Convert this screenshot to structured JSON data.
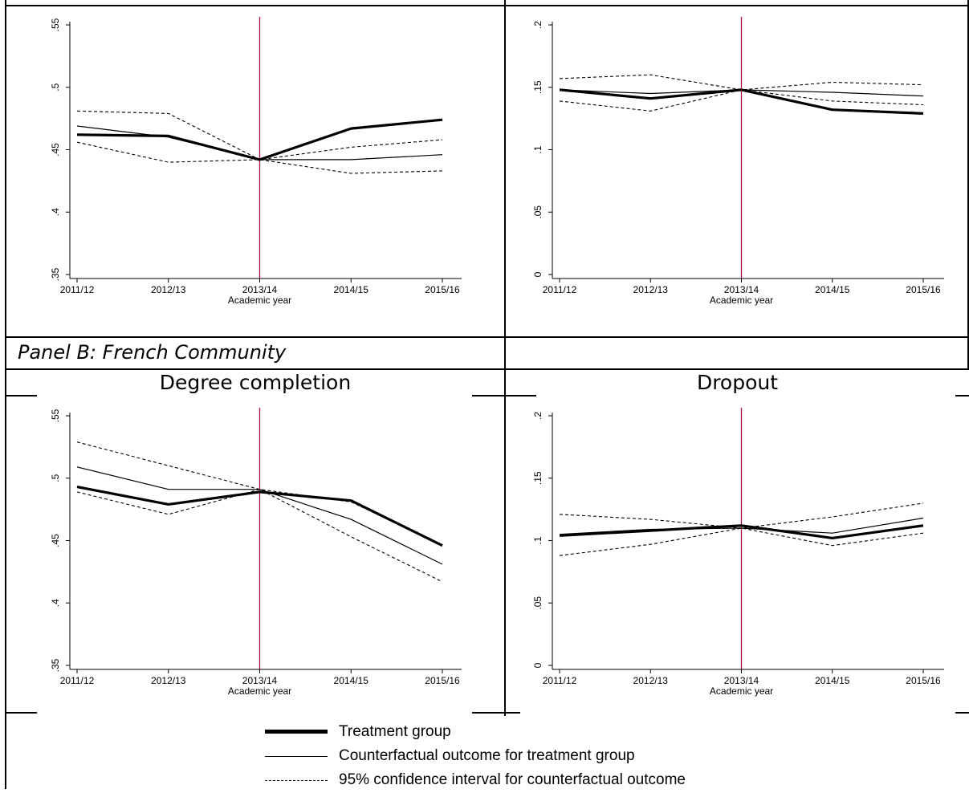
{
  "panel_b_label": "Panel B: French Community",
  "column_titles": {
    "left": "Degree completion",
    "right": "Dropout"
  },
  "legend": {
    "treatment": "Treatment group",
    "counterfactual": "Counterfactual outcome for treatment group",
    "ci": "95% confidence interval for counterfactual outcome"
  },
  "colors": {
    "line": "#000000",
    "vline": "#b0103a",
    "border": "#000000"
  },
  "chart_data": [
    {
      "id": "top-left",
      "type": "line",
      "x": [
        "2011/12",
        "2012/13",
        "2013/14",
        "2014/15",
        "2015/16"
      ],
      "xlabel": "Academic year",
      "ylim": [
        0.35,
        0.55
      ],
      "yticks": [
        0.35,
        0.4,
        0.45,
        0.5,
        0.55
      ],
      "ytick_labels": [
        ".35",
        ".4",
        ".45",
        ".5",
        ".55"
      ],
      "vline_at": "2013/14",
      "series": [
        {
          "role": "treatment",
          "values": [
            0.462,
            0.461,
            0.442,
            0.467,
            0.474
          ]
        },
        {
          "role": "counterfactual",
          "values": [
            0.469,
            0.46,
            0.442,
            0.442,
            0.446
          ]
        },
        {
          "role": "ci_upper",
          "values": [
            0.481,
            0.479,
            0.442,
            0.452,
            0.458
          ]
        },
        {
          "role": "ci_lower",
          "values": [
            0.456,
            0.44,
            0.442,
            0.431,
            0.433
          ]
        }
      ]
    },
    {
      "id": "top-right",
      "type": "line",
      "x": [
        "2011/12",
        "2012/13",
        "2013/14",
        "2014/15",
        "2015/16"
      ],
      "xlabel": "Academic year",
      "ylim": [
        0,
        0.2
      ],
      "yticks": [
        0,
        0.05,
        0.1,
        0.15,
        0.2
      ],
      "ytick_labels": [
        "0",
        ".05",
        ".1",
        ".15",
        ".2"
      ],
      "vline_at": "2013/14",
      "series": [
        {
          "role": "treatment",
          "values": [
            0.148,
            0.141,
            0.148,
            0.132,
            0.129
          ]
        },
        {
          "role": "counterfactual",
          "values": [
            0.148,
            0.145,
            0.148,
            0.146,
            0.143
          ]
        },
        {
          "role": "ci_upper",
          "values": [
            0.157,
            0.16,
            0.148,
            0.154,
            0.152
          ]
        },
        {
          "role": "ci_lower",
          "values": [
            0.139,
            0.131,
            0.148,
            0.139,
            0.136
          ]
        }
      ]
    },
    {
      "id": "bottom-left",
      "type": "line",
      "x": [
        "2011/12",
        "2012/13",
        "2013/14",
        "2014/15",
        "2015/16"
      ],
      "xlabel": "Academic year",
      "ylim": [
        0.35,
        0.55
      ],
      "yticks": [
        0.35,
        0.4,
        0.45,
        0.5,
        0.55
      ],
      "ytick_labels": [
        ".35",
        ".4",
        ".45",
        ".5",
        ".55"
      ],
      "vline_at": "2013/14",
      "series": [
        {
          "role": "treatment",
          "values": [
            0.493,
            0.479,
            0.489,
            0.482,
            0.446
          ]
        },
        {
          "role": "counterfactual",
          "values": [
            0.509,
            0.491,
            0.491,
            0.467,
            0.431
          ]
        },
        {
          "role": "ci_upper",
          "values": [
            0.529,
            0.51,
            0.491,
            0.481,
            0.446
          ]
        },
        {
          "role": "ci_lower",
          "values": [
            0.489,
            0.471,
            0.491,
            0.453,
            0.417
          ]
        }
      ]
    },
    {
      "id": "bottom-right",
      "type": "line",
      "x": [
        "2011/12",
        "2012/13",
        "2013/14",
        "2014/15",
        "2015/16"
      ],
      "xlabel": "Academic year",
      "ylim": [
        0,
        0.2
      ],
      "yticks": [
        0,
        0.05,
        0.1,
        0.15,
        0.2
      ],
      "ytick_labels": [
        "0",
        ".05",
        ".1",
        ".15",
        ".2"
      ],
      "vline_at": "2013/14",
      "series": [
        {
          "role": "treatment",
          "values": [
            0.104,
            0.108,
            0.112,
            0.102,
            0.112
          ]
        },
        {
          "role": "counterfactual",
          "values": [
            0.105,
            0.109,
            0.11,
            0.106,
            0.118
          ]
        },
        {
          "role": "ci_upper",
          "values": [
            0.121,
            0.117,
            0.11,
            0.119,
            0.13
          ]
        },
        {
          "role": "ci_lower",
          "values": [
            0.088,
            0.097,
            0.11,
            0.096,
            0.106
          ]
        }
      ]
    }
  ]
}
